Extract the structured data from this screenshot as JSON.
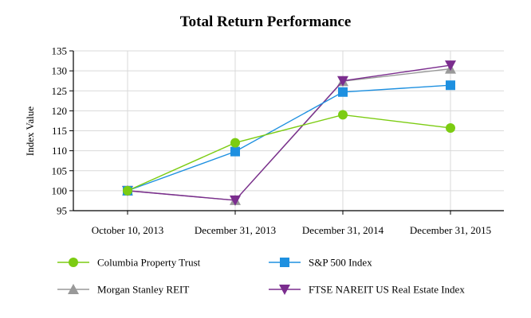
{
  "chart_data": {
    "type": "line",
    "title": "Total Return Performance",
    "xlabel": "",
    "ylabel": "Index Value",
    "categories": [
      "October 10, 2013",
      "December 31, 2013",
      "December 31, 2014",
      "December 31, 2015"
    ],
    "ylim": [
      95,
      135
    ],
    "yticks": [
      95,
      100,
      105,
      110,
      115,
      120,
      125,
      130,
      135
    ],
    "grid": true,
    "legend_position": "bottom",
    "series": [
      {
        "name": "Columbia Property Trust",
        "values": [
          100,
          112.0,
          119.0,
          115.7
        ],
        "color": "#7ccc12",
        "marker": "circle"
      },
      {
        "name": "S&P 500 Index",
        "values": [
          100,
          109.8,
          124.7,
          126.4
        ],
        "color": "#1e90e0",
        "marker": "square"
      },
      {
        "name": "Morgan Stanley REIT",
        "values": [
          100,
          97.6,
          127.4,
          130.5
        ],
        "color": "#999999",
        "marker": "triangle-up"
      },
      {
        "name": "FTSE NAREIT US Real Estate Index",
        "values": [
          100,
          97.6,
          127.5,
          131.4
        ],
        "color": "#7b2d8e",
        "marker": "triangle-down"
      }
    ]
  }
}
